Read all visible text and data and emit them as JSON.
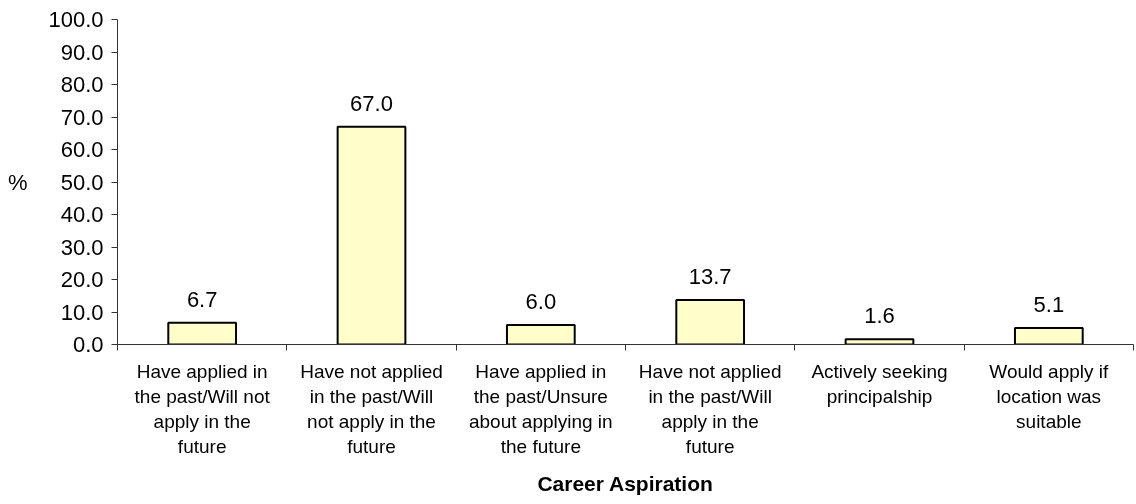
{
  "chart_data": {
    "type": "bar",
    "categories": [
      "Have applied in the past/Will not apply in the future",
      "Have not applied in the past/Will not apply in the future",
      "Have applied in the past/Unsure about applying in the future",
      "Have not applied in the past/Will apply in the future",
      "Actively seeking principalship",
      "Would apply if location was suitable"
    ],
    "values": [
      6.7,
      67.0,
      6.0,
      13.7,
      1.6,
      5.1
    ],
    "value_labels": [
      "6.7",
      "67.0",
      "6.0",
      "13.7",
      "1.6",
      "5.1"
    ],
    "color": "#ffffcc",
    "xlabel": "Career Aspiration",
    "ylabel": "%",
    "ylim": [
      0,
      100
    ],
    "yticks": [
      {
        "value": 0,
        "label": "0.0"
      },
      {
        "value": 10,
        "label": "10.0"
      },
      {
        "value": 20,
        "label": "20.0"
      },
      {
        "value": 30,
        "label": "30.0"
      },
      {
        "value": 40,
        "label": "40.0"
      },
      {
        "value": 50,
        "label": "50.0"
      },
      {
        "value": 60,
        "label": "60.0"
      },
      {
        "value": 70,
        "label": "70.0"
      },
      {
        "value": 80,
        "label": "80.0"
      },
      {
        "value": 90,
        "label": "90.0"
      },
      {
        "value": 100,
        "label": "100.0"
      }
    ],
    "grid": false
  }
}
